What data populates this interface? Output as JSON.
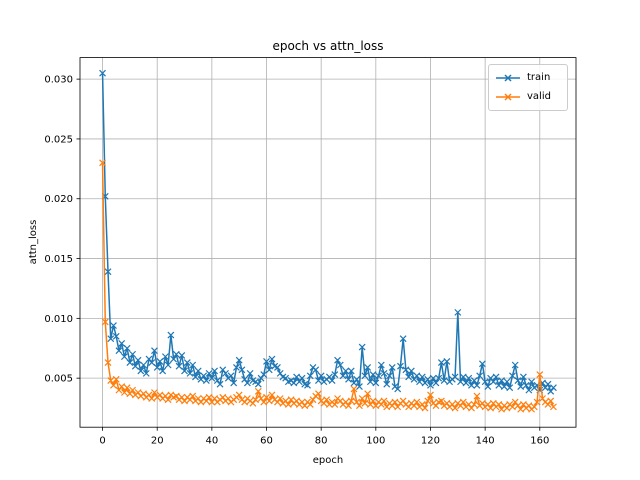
{
  "figure": {
    "title": "epoch vs attn_loss",
    "xlabel": "epoch",
    "ylabel": "attn_loss",
    "background_color": "#ffffff",
    "grid_color": "#b0b0b0",
    "spine_color": "#000000"
  },
  "legend": {
    "position": "upper right",
    "items": [
      {
        "label": "train",
        "color": "#1f77b4",
        "marker": "x"
      },
      {
        "label": "valid",
        "color": "#ff7f0e",
        "marker": "x"
      }
    ]
  },
  "chart_data": {
    "type": "line",
    "title": "epoch vs attn_loss",
    "xlabel": "epoch",
    "ylabel": "attn_loss",
    "grid": true,
    "legend_position": "upper right",
    "marker": "x",
    "xlim": [
      -8.25,
      173.25
    ],
    "ylim": [
      0.0009,
      0.0318
    ],
    "xticks": [
      0,
      20,
      40,
      60,
      80,
      100,
      120,
      140,
      160
    ],
    "yticks": [
      0.005,
      0.01,
      0.015,
      0.02,
      0.025,
      0.03
    ],
    "ytick_decimals": 3,
    "x": [
      0,
      1,
      2,
      3,
      4,
      5,
      6,
      7,
      8,
      9,
      10,
      11,
      12,
      13,
      14,
      15,
      16,
      17,
      18,
      19,
      20,
      21,
      22,
      23,
      24,
      25,
      26,
      27,
      28,
      29,
      30,
      31,
      32,
      33,
      34,
      35,
      36,
      37,
      38,
      39,
      40,
      41,
      42,
      43,
      44,
      45,
      46,
      47,
      48,
      49,
      50,
      51,
      52,
      53,
      54,
      55,
      56,
      57,
      58,
      59,
      60,
      61,
      62,
      63,
      64,
      65,
      66,
      67,
      68,
      69,
      70,
      71,
      72,
      73,
      74,
      75,
      76,
      77,
      78,
      79,
      80,
      81,
      82,
      83,
      84,
      85,
      86,
      87,
      88,
      89,
      90,
      91,
      92,
      93,
      94,
      95,
      96,
      97,
      98,
      99,
      100,
      101,
      102,
      103,
      104,
      105,
      106,
      107,
      108,
      109,
      110,
      111,
      112,
      113,
      114,
      115,
      116,
      117,
      118,
      119,
      120,
      121,
      122,
      123,
      124,
      125,
      126,
      127,
      128,
      129,
      130,
      131,
      132,
      133,
      134,
      135,
      136,
      137,
      138,
      139,
      140,
      141,
      142,
      143,
      144,
      145,
      146,
      147,
      148,
      149,
      150,
      151,
      152,
      153,
      154,
      155,
      156,
      157,
      158,
      159,
      160,
      161,
      162,
      163,
      164,
      165
    ],
    "series": [
      {
        "name": "train",
        "color": "#1f77b4",
        "values": [
          0.0305,
          0.0202,
          0.0139,
          0.0083,
          0.0094,
          0.0085,
          0.0073,
          0.0079,
          0.0068,
          0.0075,
          0.0063,
          0.007,
          0.006,
          0.0065,
          0.0056,
          0.0061,
          0.0054,
          0.0066,
          0.0063,
          0.0073,
          0.0059,
          0.0064,
          0.0056,
          0.0068,
          0.0061,
          0.0086,
          0.0066,
          0.007,
          0.006,
          0.0069,
          0.0056,
          0.0063,
          0.0054,
          0.0061,
          0.0051,
          0.0056,
          0.0049,
          0.0052,
          0.0048,
          0.0054,
          0.005,
          0.0056,
          0.0048,
          0.0045,
          0.0057,
          0.0054,
          0.005,
          0.0052,
          0.0046,
          0.0059,
          0.0065,
          0.0057,
          0.0049,
          0.0046,
          0.0054,
          0.0048,
          0.0047,
          0.0045,
          0.005,
          0.0053,
          0.0064,
          0.0057,
          0.0066,
          0.006,
          0.0059,
          0.0054,
          0.0051,
          0.005,
          0.0047,
          0.0048,
          0.0046,
          0.0051,
          0.0047,
          0.005,
          0.0045,
          0.0044,
          0.0052,
          0.0059,
          0.0057,
          0.0048,
          0.0052,
          0.0047,
          0.0049,
          0.0051,
          0.0048,
          0.0053,
          0.0065,
          0.0061,
          0.0052,
          0.0056,
          0.0049,
          0.0056,
          0.0046,
          0.0049,
          0.0043,
          0.0076,
          0.0052,
          0.0059,
          0.0047,
          0.0053,
          0.0046,
          0.0052,
          0.0061,
          0.0054,
          0.0045,
          0.0052,
          0.0059,
          0.0043,
          0.0041,
          0.006,
          0.0083,
          0.0057,
          0.0051,
          0.0056,
          0.0049,
          0.0052,
          0.0047,
          0.0051,
          0.0046,
          0.0049,
          0.0044,
          0.005,
          0.0046,
          0.005,
          0.0063,
          0.0048,
          0.0064,
          0.0047,
          0.0049,
          0.0051,
          0.0105,
          0.0047,
          0.0051,
          0.0046,
          0.005,
          0.0044,
          0.0048,
          0.0044,
          0.0052,
          0.0062,
          0.0047,
          0.0043,
          0.005,
          0.0047,
          0.0051,
          0.0044,
          0.0048,
          0.0043,
          0.0047,
          0.0042,
          0.0052,
          0.0061,
          0.0048,
          0.0043,
          0.0051,
          0.0044,
          0.004,
          0.0047,
          0.0042,
          0.0044,
          0.004,
          0.0046,
          0.0042,
          0.0045,
          0.0039,
          0.0042
        ]
      },
      {
        "name": "valid",
        "color": "#ff7f0e",
        "values": [
          0.023,
          0.0097,
          0.0063,
          0.0048,
          0.0044,
          0.0049,
          0.004,
          0.0043,
          0.0038,
          0.0042,
          0.0037,
          0.004,
          0.0036,
          0.0038,
          0.0035,
          0.0037,
          0.0034,
          0.0036,
          0.0033,
          0.0038,
          0.0034,
          0.0036,
          0.0033,
          0.0035,
          0.0032,
          0.0036,
          0.0034,
          0.0035,
          0.0032,
          0.0034,
          0.0031,
          0.0034,
          0.0032,
          0.0035,
          0.0031,
          0.0033,
          0.003,
          0.0033,
          0.0031,
          0.0034,
          0.003,
          0.0033,
          0.003,
          0.0032,
          0.0034,
          0.0031,
          0.0033,
          0.003,
          0.0032,
          0.0034,
          0.0036,
          0.0032,
          0.003,
          0.0033,
          0.0031,
          0.0029,
          0.0032,
          0.0039,
          0.0033,
          0.003,
          0.0034,
          0.0031,
          0.0036,
          0.0032,
          0.003,
          0.0033,
          0.0029,
          0.0031,
          0.0028,
          0.0032,
          0.0029,
          0.0031,
          0.0028,
          0.003,
          0.0027,
          0.003,
          0.0028,
          0.0032,
          0.0035,
          0.0037,
          0.0031,
          0.0029,
          0.0032,
          0.0028,
          0.003,
          0.0028,
          0.0033,
          0.0031,
          0.0028,
          0.003,
          0.0027,
          0.0031,
          0.0041,
          0.003,
          0.0027,
          0.0033,
          0.0029,
          0.0037,
          0.0028,
          0.0031,
          0.0027,
          0.003,
          0.0028,
          0.0031,
          0.0026,
          0.0029,
          0.0027,
          0.003,
          0.0026,
          0.0029,
          0.0031,
          0.0028,
          0.0026,
          0.0029,
          0.0027,
          0.003,
          0.0026,
          0.0028,
          0.0025,
          0.0031,
          0.0036,
          0.0029,
          0.0027,
          0.003,
          0.0031,
          0.0027,
          0.0029,
          0.0026,
          0.0028,
          0.0025,
          0.0029,
          0.0027,
          0.003,
          0.0026,
          0.0028,
          0.0025,
          0.0028,
          0.0035,
          0.0027,
          0.0029,
          0.0026,
          0.0028,
          0.0025,
          0.0029,
          0.0026,
          0.0028,
          0.0024,
          0.0027,
          0.0025,
          0.0028,
          0.0026,
          0.003,
          0.0027,
          0.0024,
          0.0028,
          0.0025,
          0.0027,
          0.0024,
          0.0026,
          0.003,
          0.0053,
          0.0033,
          0.003,
          0.0028,
          0.0031,
          0.0026
        ]
      }
    ]
  }
}
